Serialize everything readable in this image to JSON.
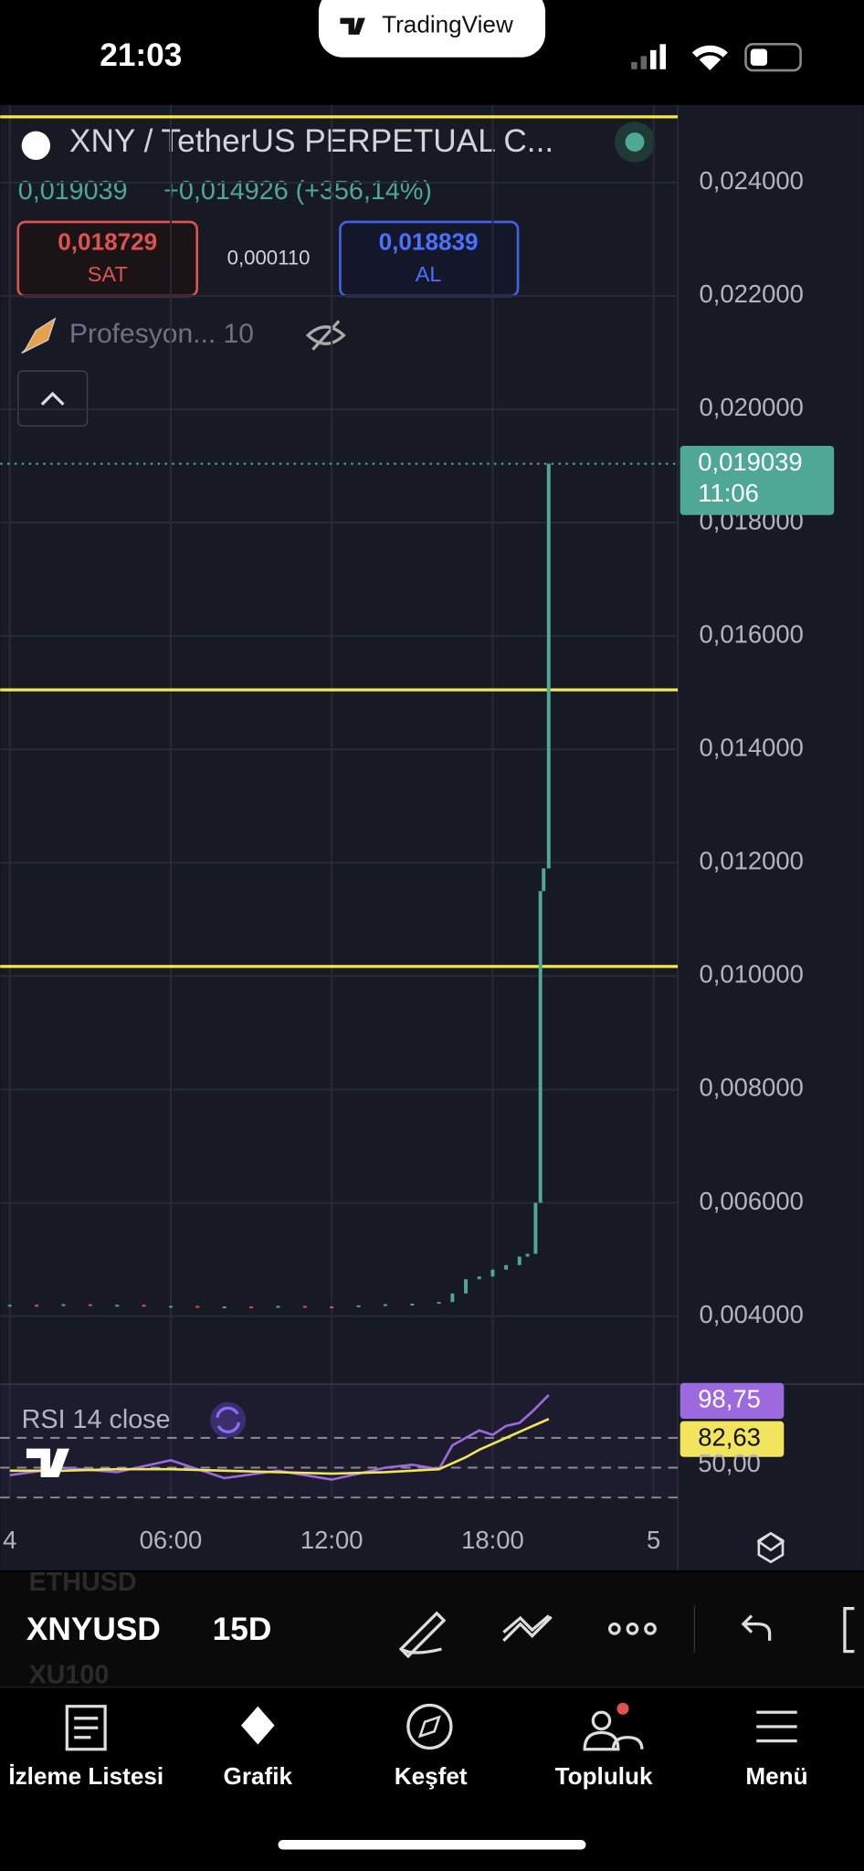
{
  "status": {
    "time": "21:03",
    "app": "TradingView"
  },
  "header": {
    "symbol": "XNY / TetherUS PERPETUAL C...",
    "price": "0,019039",
    "change": "+0,014926 (+356,14%)",
    "sell_price": "0,018729",
    "sell": "SAT",
    "spread": "0,000110",
    "buy_price": "0,018839",
    "buy": "AL",
    "indicator": "Profesyon... 10"
  },
  "chart_data": {
    "type": "candlestick",
    "x": [
      0,
      1,
      2,
      3,
      4,
      5,
      6,
      7,
      8,
      9,
      10,
      11,
      12,
      13,
      14,
      15,
      16,
      16.5,
      17,
      17.5,
      18,
      18.5,
      19,
      19.3,
      19.6,
      19.78,
      19.9,
      20.09
    ],
    "values": [
      0.0042,
      0.00418,
      0.00421,
      0.00419,
      0.0042,
      0.00417,
      0.00418,
      0.00416,
      0.00417,
      0.00416,
      0.00418,
      0.00417,
      0.00416,
      0.00419,
      0.00421,
      0.00422,
      0.00425,
      0.0044,
      0.00465,
      0.0047,
      0.00482,
      0.0049,
      0.00505,
      0.0051,
      0.006,
      0.0115,
      0.0119,
      0.019039
    ],
    "up_color": "#4fa895",
    "down_color": "#e0524f",
    "xlim": [
      -0.36,
      24.9
    ],
    "ylim": [
      0.002842,
      0.025368
    ],
    "xticks": [
      {
        "value": 0,
        "label": "4"
      },
      {
        "value": 6,
        "label": "06:00"
      },
      {
        "value": 12,
        "label": "12:00"
      },
      {
        "value": 18,
        "label": "18:00"
      },
      {
        "value": 24,
        "label": "5"
      }
    ],
    "yticks": [
      {
        "value": 0.004,
        "label": "0,004000"
      },
      {
        "value": 0.006,
        "label": "0,006000"
      },
      {
        "value": 0.008,
        "label": "0,008000"
      },
      {
        "value": 0.01,
        "label": "0,010000"
      },
      {
        "value": 0.012,
        "label": "0,012000"
      },
      {
        "value": 0.014,
        "label": "0,014000"
      },
      {
        "value": 0.016,
        "label": "0,016000"
      },
      {
        "value": 0.018,
        "label": "0,018000"
      },
      {
        "value": 0.02,
        "label": "0,020000"
      },
      {
        "value": 0.022,
        "label": "0,022000"
      },
      {
        "value": 0.024,
        "label": "0,024000"
      }
    ],
    "grid": true,
    "hlines": [
      0.02516,
      0.01505,
      0.01017
    ],
    "hline_color": "#f5e94a",
    "last_price": {
      "value": 0.019039,
      "label": "0,019039"
    },
    "countdown": "11:06",
    "rsi": {
      "label": "RSI 14 close",
      "x": [
        0,
        2,
        4,
        6,
        8,
        10,
        12,
        14,
        15,
        16,
        16.5,
        17,
        17.5,
        18,
        18.5,
        19,
        19.5,
        20.09
      ],
      "values": [
        45,
        50,
        47,
        55,
        43,
        48,
        42,
        50,
        52,
        49,
        65,
        70,
        75,
        72,
        78,
        80,
        88,
        98.75
      ],
      "ma": [
        48,
        48,
        49,
        49,
        48,
        47,
        46,
        47,
        48,
        49,
        53,
        57,
        62,
        66,
        70,
        74,
        78,
        82.63
      ],
      "color": "#9c6ade",
      "ma_color": "#f2e45c",
      "ylim": [
        30,
        106
      ],
      "levels": [
        70,
        50,
        30
      ],
      "yticks": [
        {
          "value": 98.75,
          "label": "98,75"
        },
        {
          "value": 82.63,
          "label": "82,63"
        },
        {
          "value": 50,
          "label": "50,00"
        }
      ]
    }
  },
  "toolbar": {
    "symbol": "XNYUSD",
    "interval": "15D",
    "ghost_above": "ETHUSD",
    "ghost_below": "XU100"
  },
  "nav": [
    "İzleme Listesi",
    "Grafik",
    "Keşfet",
    "Topluluk",
    "Menü"
  ]
}
